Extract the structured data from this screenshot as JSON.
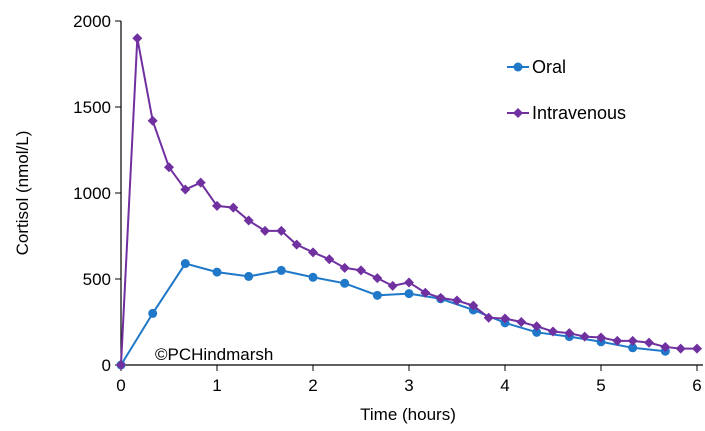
{
  "chart_data": {
    "type": "line",
    "xlabel": "Time  (hours)",
    "ylabel": "Cortisol  (nmol/L)",
    "xlim": [
      0,
      6
    ],
    "ylim": [
      0,
      2000
    ],
    "x_ticks": [
      "0",
      "1",
      "2",
      "3",
      "4",
      "5",
      "6"
    ],
    "y_ticks": [
      "0",
      "500",
      "1000",
      "1500",
      "2000"
    ],
    "grid": false,
    "legend_position": "top-right",
    "annotation": "©PCHindmarsh",
    "series": [
      {
        "name": "Oral",
        "color": "#1f78c8",
        "marker": "circle",
        "x": [
          0,
          0.33,
          0.67,
          1.0,
          1.33,
          1.67,
          2.0,
          2.33,
          2.67,
          3.0,
          3.33,
          3.67,
          4.0,
          4.33,
          4.67,
          5.0,
          5.33,
          5.67
        ],
        "y": [
          0,
          300,
          590,
          540,
          515,
          550,
          510,
          475,
          405,
          415,
          385,
          320,
          245,
          190,
          165,
          135,
          100,
          80
        ]
      },
      {
        "name": "Intravenous",
        "color": "#7030a0",
        "marker": "diamond",
        "x": [
          0,
          0.17,
          0.33,
          0.5,
          0.67,
          0.83,
          1.0,
          1.17,
          1.33,
          1.5,
          1.67,
          1.83,
          2.0,
          2.17,
          2.33,
          2.5,
          2.67,
          2.83,
          3.0,
          3.17,
          3.33,
          3.5,
          3.67,
          3.83,
          4.0,
          4.17,
          4.33,
          4.5,
          4.67,
          4.83,
          5.0,
          5.17,
          5.33,
          5.5,
          5.67,
          5.83,
          6.0
        ],
        "y": [
          0,
          1900,
          1420,
          1150,
          1020,
          1060,
          925,
          915,
          840,
          780,
          780,
          700,
          655,
          615,
          565,
          550,
          505,
          460,
          480,
          420,
          390,
          375,
          345,
          275,
          270,
          250,
          225,
          195,
          185,
          165,
          160,
          140,
          140,
          130,
          105,
          95,
          95
        ]
      }
    ]
  }
}
